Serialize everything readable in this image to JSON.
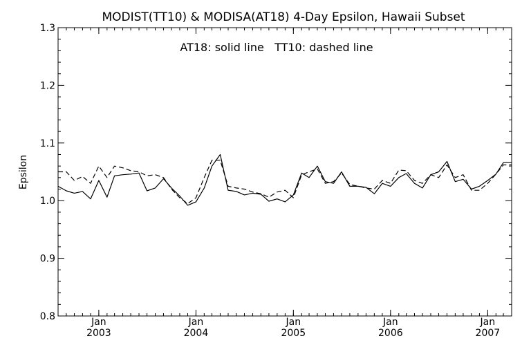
{
  "chart_data": {
    "type": "line",
    "title": "MODIST(TT10) & MODISA(AT18) 4-Day Epsilon, Hawaii Subset",
    "annotation": "AT18: solid line   TT10: dashed line",
    "xlabel": "",
    "ylabel": "Epsilon",
    "xlim": [
      "2002-08-01",
      "2007-04-01"
    ],
    "ylim": [
      0.8,
      1.3
    ],
    "y_ticks": [
      "0.8",
      "0.9",
      "1.0",
      "1.1",
      "1.2",
      "1.3"
    ],
    "x_ticks": [
      {
        "date": "2003-01-01",
        "label_top": "Jan",
        "label_bottom": "2003"
      },
      {
        "date": "2004-01-01",
        "label_top": "Jan",
        "label_bottom": "2004"
      },
      {
        "date": "2005-01-01",
        "label_top": "Jan",
        "label_bottom": "2005"
      },
      {
        "date": "2006-01-01",
        "label_top": "Jan",
        "label_bottom": "2006"
      },
      {
        "date": "2007-01-01",
        "label_top": "Jan",
        "label_bottom": "2007"
      }
    ],
    "grid": false,
    "series": [
      {
        "name": "AT18",
        "style": "solid",
        "color": "#000000",
        "x": [
          "2002-08-01",
          "2002-09-01",
          "2002-10-01",
          "2002-11-01",
          "2002-12-01",
          "2003-01-01",
          "2003-02-01",
          "2003-03-01",
          "2003-04-01",
          "2003-05-01",
          "2003-06-01",
          "2003-07-01",
          "2003-08-01",
          "2003-09-01",
          "2003-10-01",
          "2003-11-01",
          "2003-12-01",
          "2004-01-01",
          "2004-02-01",
          "2004-03-01",
          "2004-04-01",
          "2004-05-01",
          "2004-06-01",
          "2004-07-01",
          "2004-08-01",
          "2004-09-01",
          "2004-10-01",
          "2004-11-01",
          "2004-12-01",
          "2005-01-01",
          "2005-02-01",
          "2005-03-01",
          "2005-04-01",
          "2005-05-01",
          "2005-06-01",
          "2005-07-01",
          "2005-08-01",
          "2005-09-01",
          "2005-10-01",
          "2005-11-01",
          "2005-12-01",
          "2006-01-01",
          "2006-02-01",
          "2006-03-01",
          "2006-04-01",
          "2006-05-01",
          "2006-06-01",
          "2006-07-01",
          "2006-08-01",
          "2006-09-01",
          "2006-10-01",
          "2006-11-01",
          "2006-12-01",
          "2007-01-01",
          "2007-02-01",
          "2007-03-01",
          "2007-04-01"
        ],
        "values": [
          1.025,
          1.017,
          1.013,
          1.016,
          1.003,
          1.035,
          1.006,
          1.043,
          1.045,
          1.046,
          1.048,
          1.017,
          1.022,
          1.038,
          1.022,
          1.008,
          0.992,
          0.998,
          1.022,
          1.06,
          1.08,
          1.018,
          1.016,
          1.01,
          1.013,
          1.011,
          0.999,
          1.003,
          0.998,
          1.01,
          1.048,
          1.04,
          1.06,
          1.033,
          1.03,
          1.05,
          1.025,
          1.025,
          1.023,
          1.012,
          1.03,
          1.025,
          1.04,
          1.047,
          1.03,
          1.022,
          1.045,
          1.05,
          1.068,
          1.033,
          1.037,
          1.02,
          1.025,
          1.035,
          1.046,
          1.066,
          1.066
        ]
      },
      {
        "name": "TT10",
        "style": "dashed",
        "color": "#000000",
        "x": [
          "2002-08-01",
          "2002-09-01",
          "2002-10-01",
          "2002-11-01",
          "2002-12-01",
          "2003-01-01",
          "2003-02-01",
          "2003-03-01",
          "2003-04-01",
          "2003-05-01",
          "2003-06-01",
          "2003-07-01",
          "2003-08-01",
          "2003-09-01",
          "2003-10-01",
          "2003-11-01",
          "2003-12-01",
          "2004-01-01",
          "2004-02-01",
          "2004-03-01",
          "2004-04-01",
          "2004-05-01",
          "2004-06-01",
          "2004-07-01",
          "2004-08-01",
          "2004-09-01",
          "2004-10-01",
          "2004-11-01",
          "2004-12-01",
          "2005-01-01",
          "2005-02-01",
          "2005-03-01",
          "2005-04-01",
          "2005-05-01",
          "2005-06-01",
          "2005-07-01",
          "2005-08-01",
          "2005-09-01",
          "2005-10-01",
          "2005-11-01",
          "2005-12-01",
          "2006-01-01",
          "2006-02-01",
          "2006-03-01",
          "2006-04-01",
          "2006-05-01",
          "2006-06-01",
          "2006-07-01",
          "2006-08-01",
          "2006-09-01",
          "2006-10-01",
          "2006-11-01",
          "2006-12-01",
          "2007-01-01",
          "2007-02-01",
          "2007-03-01",
          "2007-04-01"
        ],
        "values": [
          1.05,
          1.05,
          1.035,
          1.042,
          1.03,
          1.06,
          1.04,
          1.06,
          1.057,
          1.052,
          1.05,
          1.043,
          1.045,
          1.04,
          1.02,
          1.005,
          0.995,
          1.005,
          1.04,
          1.07,
          1.07,
          1.025,
          1.022,
          1.02,
          1.015,
          1.012,
          1.006,
          1.015,
          1.018,
          1.005,
          1.045,
          1.05,
          1.055,
          1.03,
          1.033,
          1.048,
          1.028,
          1.025,
          1.022,
          1.02,
          1.035,
          1.03,
          1.053,
          1.052,
          1.035,
          1.03,
          1.045,
          1.04,
          1.062,
          1.04,
          1.045,
          1.018,
          1.018,
          1.03,
          1.046,
          1.062,
          1.062
        ]
      }
    ]
  }
}
